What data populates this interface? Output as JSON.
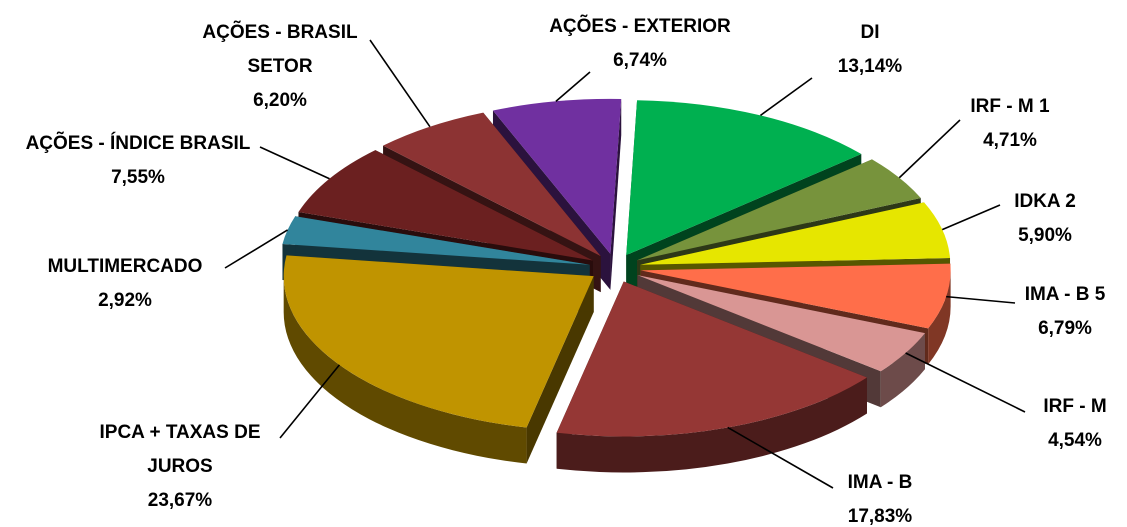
{
  "chart_data": {
    "type": "pie",
    "style": "3d-exploded",
    "title": "",
    "legend": "none",
    "slices": [
      {
        "name": "DI",
        "label_lines": [
          "DI"
        ],
        "value_label": "13,14%",
        "value": 13.14,
        "color": "#00b050"
      },
      {
        "name": "IRF - M 1",
        "label_lines": [
          "IRF - M 1"
        ],
        "value_label": "4,71%",
        "value": 4.71,
        "color": "#77933c"
      },
      {
        "name": "IDKA 2",
        "label_lines": [
          "IDKA 2"
        ],
        "value_label": "5,90%",
        "value": 5.9,
        "color": "#e6e600"
      },
      {
        "name": "IMA - B 5",
        "label_lines": [
          "IMA - B 5"
        ],
        "value_label": "6,79%",
        "value": 6.79,
        "color": "#ff6e4a"
      },
      {
        "name": "IRF - M",
        "label_lines": [
          "IRF - M"
        ],
        "value_label": "4,54%",
        "value": 4.54,
        "color": "#d99694"
      },
      {
        "name": "IMA - B",
        "label_lines": [
          "IMA - B"
        ],
        "value_label": "17,83%",
        "value": 17.83,
        "color": "#953735"
      },
      {
        "name": "IPCA + TAXAS DE JUROS",
        "label_lines": [
          "IPCA + TAXAS DE",
          "JUROS"
        ],
        "value_label": "23,67%",
        "value": 23.67,
        "color": "#c09400"
      },
      {
        "name": "MULTIMERCADO",
        "label_lines": [
          "MULTIMERCADO"
        ],
        "value_label": "2,92%",
        "value": 2.92,
        "color": "#31859c"
      },
      {
        "name": "AÇÕES - ÍNDICE BRASIL",
        "label_lines": [
          "AÇÕES - ÍNDICE BRASIL"
        ],
        "value_label": "7,55%",
        "value": 7.55,
        "color": "#6b2020"
      },
      {
        "name": "AÇÕES - BRASIL SETOR",
        "label_lines": [
          "AÇÕES - BRASIL",
          "SETOR"
        ],
        "value_label": "6,20%",
        "value": 6.2,
        "color": "#8c3333"
      },
      {
        "name": "AÇÕES - EXTERIOR",
        "label_lines": [
          "AÇÕES - EXTERIOR"
        ],
        "value_label": "6,74%",
        "value": 6.74,
        "color": "#7030a0"
      }
    ]
  }
}
